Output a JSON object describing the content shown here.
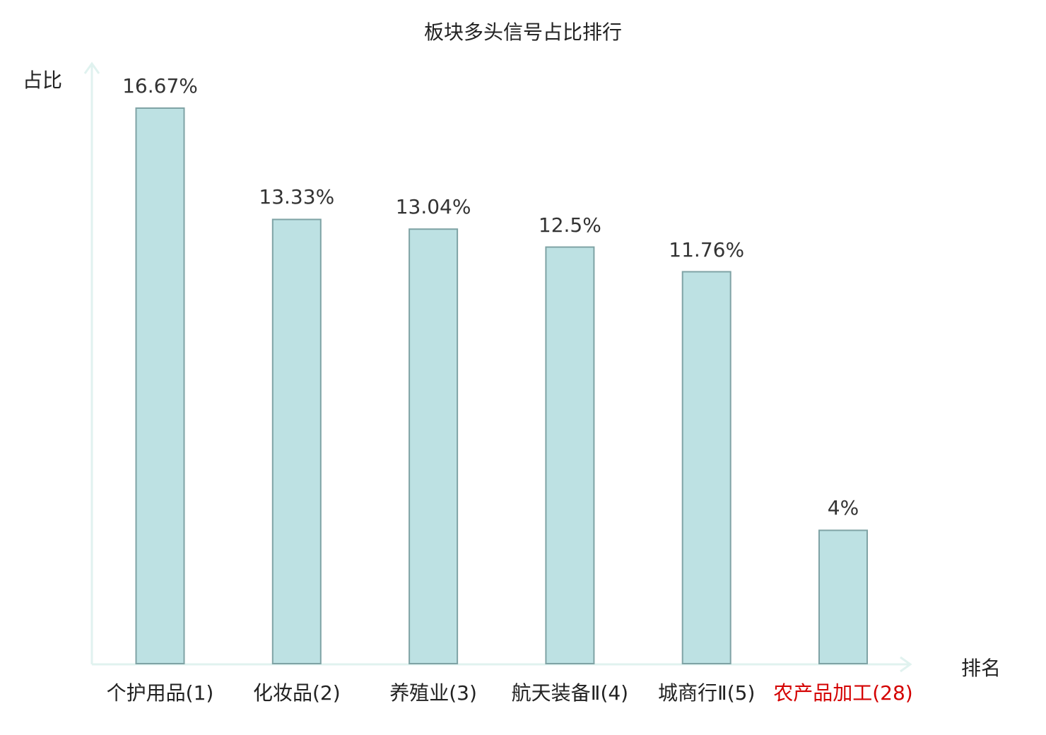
{
  "chart_data": {
    "type": "bar",
    "title": "板块多头信号占比排行",
    "ylabel": "占比",
    "xlabel": "排名",
    "categories": [
      "个护用品(1)",
      "化妆品(2)",
      "养殖业(3)",
      "航天装备Ⅱ(4)",
      "城商行Ⅱ(5)",
      "农产品加工(28)"
    ],
    "values": [
      16.67,
      13.33,
      13.04,
      12.5,
      11.76,
      4
    ],
    "value_labels": [
      "16.67%",
      "13.33%",
      "13.04%",
      "12.5%",
      "11.76%",
      "4%"
    ],
    "highlight_index": 5,
    "ylim": [
      0,
      17.5
    ],
    "grid": false,
    "legend": "none"
  },
  "colors": {
    "bar_fill": "#bde1e3",
    "bar_stroke": "#7fa3a5",
    "axis": "#e0f2ef",
    "highlight_text": "#d40000"
  }
}
